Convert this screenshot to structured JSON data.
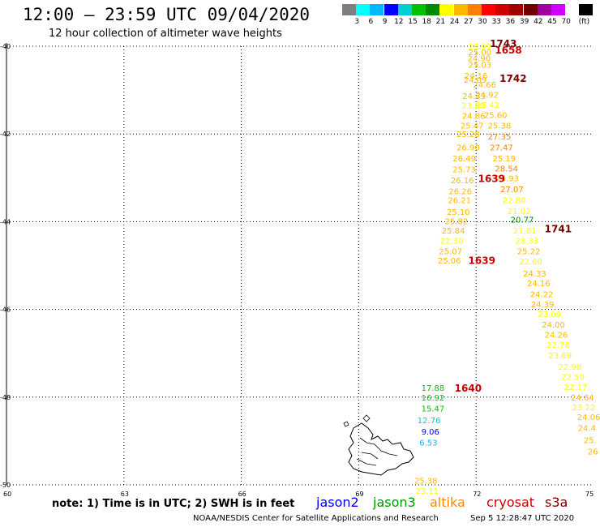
{
  "header": {
    "title": "12:00 – 23:59 UTC 09/04/2020",
    "subtitle": "12 hour collection of altimeter wave heights"
  },
  "colorbar": {
    "unit": "(ft)",
    "colors": [
      "#7f7f7f",
      "#00ffff",
      "#00b8ff",
      "#0000ff",
      "#00d0d0",
      "#00c000",
      "#008800",
      "#ffff00",
      "#ffb800",
      "#ff8000",
      "#ff0000",
      "#d00000",
      "#a00000",
      "#700000",
      "#a000a0",
      "#d000ff",
      "#ffffff",
      "#000000"
    ],
    "labels": [
      "3",
      "6",
      "9",
      "12",
      "15",
      "18",
      "21",
      "24",
      "27",
      "30",
      "33",
      "36",
      "39",
      "42",
      "45",
      "70"
    ]
  },
  "axes": {
    "lat_labels": [
      "-40",
      "-42",
      "-44",
      "-46",
      "-48",
      "-50"
    ],
    "lon_labels": [
      "60",
      "63",
      "66",
      "69",
      "72",
      "75"
    ]
  },
  "measurements": [
    {
      "t": "23.99",
      "lat": -40.0,
      "lon": 71.8
    },
    {
      "t": "25.00",
      "lat": -40.13,
      "lon": 71.8
    },
    {
      "t": "24.90",
      "lat": -40.27,
      "lon": 71.78
    },
    {
      "t": "25.03",
      "lat": -40.42,
      "lon": 71.8
    },
    {
      "t": "24.16",
      "lat": -40.67,
      "lon": 71.7
    },
    {
      "t": "24.09",
      "lat": -40.76,
      "lon": 71.68
    },
    {
      "t": "24.66",
      "lat": -40.87,
      "lon": 71.92
    },
    {
      "t": "24.92",
      "lat": -41.1,
      "lon": 71.98
    },
    {
      "t": "24.33",
      "lat": -41.13,
      "lon": 71.65
    },
    {
      "t": "23.42",
      "lat": -41.33,
      "lon": 72.0
    },
    {
      "t": "23.88",
      "lat": -41.35,
      "lon": 71.63
    },
    {
      "t": "24.86",
      "lat": -41.58,
      "lon": 71.64
    },
    {
      "t": "25.60",
      "lat": -41.56,
      "lon": 72.2
    },
    {
      "t": "25.47",
      "lat": -41.8,
      "lon": 71.6
    },
    {
      "t": "25.38",
      "lat": -41.8,
      "lon": 72.3
    },
    {
      "t": "25.28",
      "lat": -42.0,
      "lon": 71.5
    },
    {
      "t": "27.35",
      "lat": -42.05,
      "lon": 72.3
    },
    {
      "t": "26.90",
      "lat": -42.3,
      "lon": 71.5
    },
    {
      "t": "27.47",
      "lat": -42.3,
      "lon": 72.35
    },
    {
      "t": "26.49",
      "lat": -42.55,
      "lon": 71.4
    },
    {
      "t": "25.19",
      "lat": -42.55,
      "lon": 72.42
    },
    {
      "t": "25.73",
      "lat": -42.8,
      "lon": 71.4
    },
    {
      "t": "28.54",
      "lat": -42.78,
      "lon": 72.48
    },
    {
      "t": "26.16",
      "lat": -43.05,
      "lon": 71.35
    },
    {
      "t": "26.93",
      "lat": -43.0,
      "lon": 72.5
    },
    {
      "t": "26.26",
      "lat": -43.3,
      "lon": 71.3
    },
    {
      "t": "27.07",
      "lat": -43.25,
      "lon": 72.62
    },
    {
      "t": "26.21",
      "lat": -43.5,
      "lon": 71.28
    },
    {
      "t": "22.80",
      "lat": -43.5,
      "lon": 72.68
    },
    {
      "t": "25.10",
      "lat": -43.77,
      "lon": 71.25
    },
    {
      "t": "21.02",
      "lat": -43.75,
      "lon": 72.8
    },
    {
      "t": "25.82",
      "lat": -43.98,
      "lon": 71.2
    },
    {
      "t": "20.77",
      "lat": -43.95,
      "lon": 72.88
    },
    {
      "t": "25.84",
      "lat": -44.2,
      "lon": 71.12
    },
    {
      "t": "21.81",
      "lat": -44.2,
      "lon": 72.95
    },
    {
      "t": "22.30",
      "lat": -44.43,
      "lon": 71.08
    },
    {
      "t": "23.33",
      "lat": -44.43,
      "lon": 73.0
    },
    {
      "t": "25.07",
      "lat": -44.67,
      "lon": 71.05
    },
    {
      "t": "25.22",
      "lat": -44.67,
      "lon": 73.05
    },
    {
      "t": "25.06",
      "lat": -44.88,
      "lon": 71.02
    },
    {
      "t": "22.60",
      "lat": -44.9,
      "lon": 73.1
    },
    {
      "t": "24.33",
      "lat": -45.18,
      "lon": 73.2
    },
    {
      "t": "24.16",
      "lat": -45.4,
      "lon": 73.3
    },
    {
      "t": "24.22",
      "lat": -45.65,
      "lon": 73.38
    },
    {
      "t": "24.39",
      "lat": -45.88,
      "lon": 73.4
    },
    {
      "t": "23.09",
      "lat": -46.1,
      "lon": 73.58
    },
    {
      "t": "24.00",
      "lat": -46.34,
      "lon": 73.68
    },
    {
      "t": "24.26",
      "lat": -46.57,
      "lon": 73.75
    },
    {
      "t": "22.78",
      "lat": -46.8,
      "lon": 73.8
    },
    {
      "t": "23.69",
      "lat": -47.04,
      "lon": 73.85
    },
    {
      "t": "22.98",
      "lat": -47.3,
      "lon": 74.1
    },
    {
      "t": "22.50",
      "lat": -47.53,
      "lon": 74.18
    },
    {
      "t": "22.17",
      "lat": -47.76,
      "lon": 74.25
    },
    {
      "t": "24.64",
      "lat": -48.0,
      "lon": 74.42
    },
    {
      "t": "23.22",
      "lat": -48.23,
      "lon": 74.45
    },
    {
      "t": "24.06",
      "lat": -48.45,
      "lon": 74.58
    },
    {
      "t": "24.4",
      "lat": -48.7,
      "lon": 74.6
    },
    {
      "t": "25.",
      "lat": -48.97,
      "lon": 74.75
    },
    {
      "t": "26",
      "lat": -49.23,
      "lon": 74.85
    },
    {
      "t": "17.88",
      "lat": -47.78,
      "lon": 70.6
    },
    {
      "t": "16.92",
      "lat": -48.0,
      "lon": 70.6
    },
    {
      "t": "15.47",
      "lat": -48.25,
      "lon": 70.6
    },
    {
      "t": "12.76",
      "lat": -48.52,
      "lon": 70.5
    },
    {
      "t": "9.06",
      "lat": -48.78,
      "lon": 70.6
    },
    {
      "t": "6.53",
      "lat": -49.03,
      "lon": 70.55
    },
    {
      "t": "25.38",
      "lat": -49.9,
      "lon": 70.42
    },
    {
      "t": "23.11",
      "lat": -50.13,
      "lon": 70.45
    }
  ],
  "times": [
    {
      "t": "1743",
      "lat": -39.93,
      "lon": 72.35,
      "color": "#7a0000"
    },
    {
      "t": "1658",
      "lat": -40.07,
      "lon": 72.48,
      "color": "#c80000"
    },
    {
      "t": "1742",
      "lat": -40.72,
      "lon": 72.6,
      "color": "#7a0000"
    },
    {
      "t": "1639",
      "lat": -43.0,
      "lon": 72.05,
      "color": "#c80000"
    },
    {
      "t": "1741",
      "lat": -44.15,
      "lon": 73.75,
      "color": "#7a0000"
    },
    {
      "t": "1639",
      "lat": -44.87,
      "lon": 71.8,
      "color": "#c80000"
    },
    {
      "t": "1640",
      "lat": -47.78,
      "lon": 71.45,
      "color": "#c80000"
    }
  ],
  "legend": {
    "note": "note: 1) Time is in UTC; 2) SWH is in feet",
    "satellites": [
      {
        "name": "jason2",
        "color": "#0000ee"
      },
      {
        "name": "jason3",
        "color": "#009900"
      },
      {
        "name": "altika",
        "color": "#ff8800"
      },
      {
        "name": "cryosat",
        "color": "#cc0000"
      },
      {
        "name": "s3a",
        "color": "#7a0000"
      }
    ]
  },
  "footer": {
    "credit": "NOAA/NESDIS Center for Satellite Applications and Research",
    "timestamp": "Sep  5 12:28:47 UTC 2020"
  }
}
